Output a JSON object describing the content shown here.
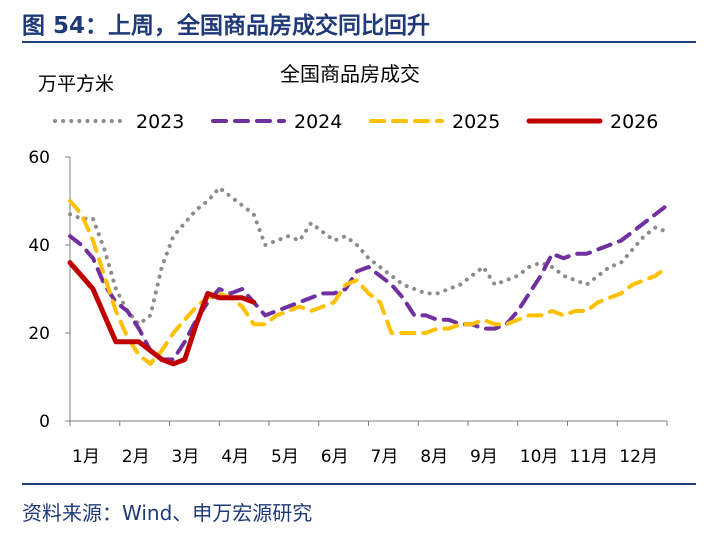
{
  "figure_title": "图 54：上周，全国商品房成交同比回升",
  "source": "资料来源：Wind、申万宏源研究",
  "chart_data": {
    "type": "line",
    "title": "全国商品房成交",
    "ylabel": "万平方米",
    "xlabel": "",
    "ylim": [
      0,
      60
    ],
    "yticks": [
      0,
      20,
      40,
      60
    ],
    "x_ticks": [
      "1月",
      "2月",
      "3月",
      "4月",
      "5月",
      "6月",
      "7月",
      "8月",
      "9月",
      "10月",
      "11月",
      "12月"
    ],
    "x_unit": "week",
    "x_range": [
      1,
      53
    ],
    "grid": false,
    "legend_position": "top",
    "series": [
      {
        "name": "2023",
        "color": "#8c8c8c",
        "style": "dotted",
        "x": [
          1,
          2,
          3,
          4,
          5,
          6,
          7,
          8,
          9,
          10,
          11,
          12,
          13,
          14,
          15,
          16,
          17,
          18,
          19,
          20,
          21,
          22,
          23,
          24,
          25,
          26,
          27,
          28,
          29,
          30,
          31,
          32,
          33,
          34,
          35,
          36,
          37,
          38,
          39,
          40,
          41,
          42,
          43,
          44,
          45,
          46,
          47,
          48,
          49,
          50,
          51,
          52,
          53
        ],
        "values": [
          47,
          46,
          46,
          39,
          30,
          25,
          22,
          24,
          35,
          42,
          45,
          48,
          50,
          53,
          51,
          49,
          47,
          40,
          41,
          42,
          41,
          45,
          43,
          41,
          42,
          40,
          37,
          35,
          33,
          31,
          30,
          29,
          29,
          30,
          31,
          33,
          35,
          31,
          32,
          33,
          35,
          36,
          35,
          33,
          32,
          31,
          33,
          35,
          36,
          39,
          42,
          44,
          43
        ]
      },
      {
        "name": "2024",
        "color": "#7030a0",
        "style": "dashed",
        "x": [
          1,
          2,
          3,
          4,
          5,
          6,
          7,
          8,
          9,
          10,
          11,
          12,
          13,
          14,
          15,
          16,
          17,
          18,
          19,
          20,
          21,
          22,
          23,
          24,
          25,
          26,
          27,
          28,
          29,
          30,
          31,
          32,
          33,
          34,
          35,
          36,
          37,
          38,
          39,
          40,
          41,
          42,
          43,
          44,
          45,
          46,
          47,
          48,
          49,
          50,
          51,
          52,
          53
        ],
        "values": [
          42,
          40,
          37,
          31,
          27,
          25,
          21,
          16,
          14,
          14,
          18,
          23,
          27,
          30,
          29,
          30,
          27,
          24,
          25,
          26,
          27,
          28,
          29,
          29,
          30,
          34,
          35,
          33,
          31,
          28,
          24,
          24,
          23,
          23,
          22,
          22,
          21,
          21,
          22,
          25,
          29,
          33,
          38,
          37,
          38,
          38,
          39,
          40,
          41,
          43,
          45,
          47,
          49
        ]
      },
      {
        "name": "2025",
        "color": "#ffc000",
        "style": "dashed",
        "x": [
          1,
          2,
          3,
          4,
          5,
          6,
          7,
          8,
          9,
          10,
          11,
          12,
          13,
          14,
          15,
          16,
          17,
          18,
          19,
          20,
          21,
          22,
          23,
          24,
          25,
          26,
          27,
          28,
          29,
          30,
          31,
          32,
          33,
          34,
          35,
          36,
          37,
          38,
          39,
          40,
          41,
          42,
          43,
          44,
          45,
          46,
          47,
          48,
          49,
          50,
          51,
          52,
          53
        ],
        "values": [
          50,
          47,
          41,
          33,
          25,
          19,
          15,
          13,
          16,
          20,
          23,
          26,
          28,
          29,
          28,
          26,
          22,
          22,
          24,
          25,
          26,
          25,
          26,
          27,
          31,
          32,
          29,
          27,
          20,
          20,
          20,
          20,
          21,
          21,
          22,
          22,
          23,
          22,
          22,
          23,
          24,
          24,
          25,
          24,
          25,
          25,
          27,
          28,
          29,
          31,
          32,
          33,
          35
        ]
      },
      {
        "name": "2026",
        "color": "#c00000",
        "style": "solid",
        "x": [
          1,
          2,
          3,
          4,
          5,
          6,
          7,
          8,
          9,
          10,
          11,
          12,
          13,
          14,
          15,
          16,
          17
        ],
        "values": [
          36,
          33,
          30,
          24,
          18,
          18,
          18,
          16,
          14,
          13,
          14,
          22,
          29,
          28,
          28,
          28,
          27
        ]
      }
    ]
  }
}
